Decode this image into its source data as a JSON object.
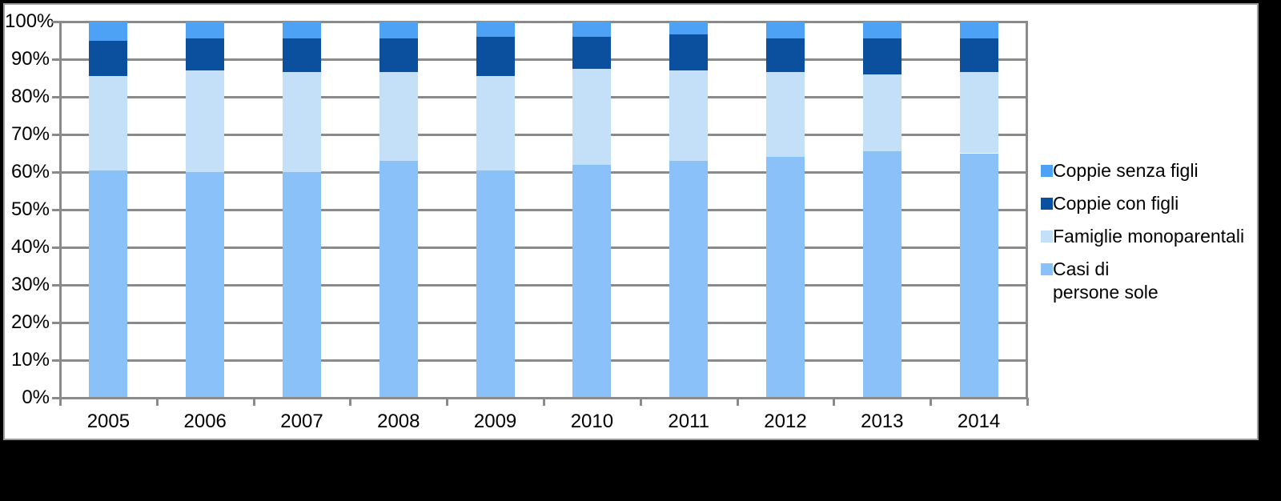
{
  "chart_data": {
    "type": "bar",
    "stacked": true,
    "stacked_100_percent": true,
    "categories": [
      "2005",
      "2006",
      "2007",
      "2008",
      "2009",
      "2010",
      "2011",
      "2012",
      "2013",
      "2014"
    ],
    "series": [
      {
        "name": "Casi di persone sole",
        "color": "#8ac1f8",
        "values": [
          60.5,
          60,
          60,
          63,
          60.5,
          62,
          63,
          64,
          65.5,
          65
        ]
      },
      {
        "name": "Famiglie monoparentali",
        "color": "#c4dff8",
        "values": [
          25,
          27,
          26.5,
          23.5,
          25,
          25.5,
          24,
          22.5,
          20.5,
          21.5
        ]
      },
      {
        "name": "Coppie con figli",
        "color": "#0b509e",
        "values": [
          9.5,
          8.5,
          9,
          9,
          10.5,
          8.5,
          9.5,
          9,
          9.5,
          9
        ]
      },
      {
        "name": "Coppie senza figli",
        "color": "#4da2f5",
        "values": [
          5,
          4.5,
          4.5,
          4.5,
          4,
          4,
          3.5,
          4.5,
          4.5,
          4.5
        ]
      }
    ],
    "stack_order_note": "bottom-to-top: Casi di persone sole, Famiglie monoparentali, Coppie con figli, Coppie senza figli",
    "y_axis": {
      "min": 0,
      "max": 100,
      "step": 10,
      "grid": true,
      "tick_labels": [
        "100%",
        "90%",
        "80%",
        "70%",
        "60%",
        "50%",
        "40%",
        "30%",
        "20%",
        "10%",
        "0%"
      ]
    },
    "legend": {
      "position": "right",
      "entries": [
        {
          "lines": [
            "Coppie senza figli"
          ],
          "color": "#4da2f5"
        },
        {
          "lines": [
            "Coppie con figli"
          ],
          "color": "#0b509e"
        },
        {
          "lines": [
            "Famiglie monoparentali"
          ],
          "color": "#c4dff8",
          "clipped_at_edge": true
        },
        {
          "lines": [
            "Casi di",
            "persone sole"
          ],
          "color": "#8ac1f8"
        }
      ]
    },
    "style": {
      "background": "#000000",
      "canvas_background": "#ffffff",
      "canvas_border": "#9d9d9d",
      "gridline_color": "#8a8a8a",
      "text_color": "#000000"
    }
  }
}
